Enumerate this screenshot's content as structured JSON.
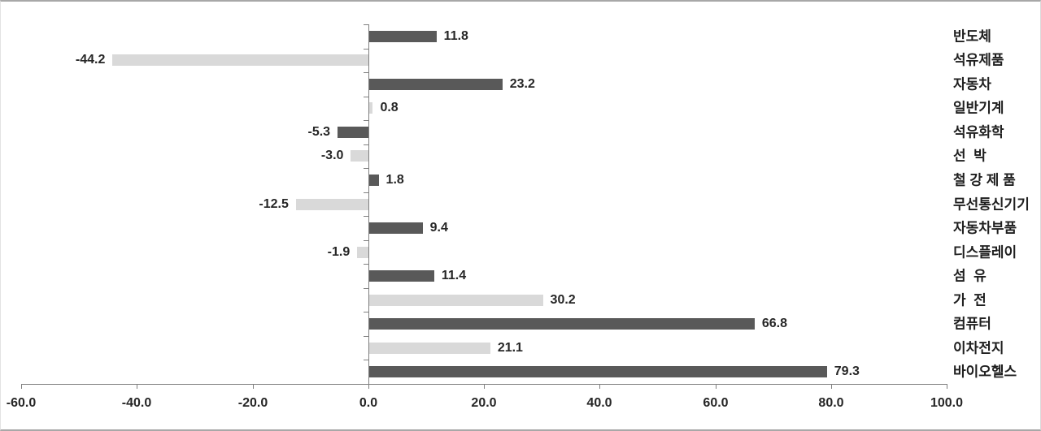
{
  "chart_data": {
    "type": "bar",
    "orientation": "horizontal",
    "title": "",
    "xlabel": "",
    "ylabel": "",
    "xlim": [
      -60.0,
      100.0
    ],
    "grid": false,
    "legend": "none",
    "categories": [
      "반도체",
      "석유제품",
      "자동차",
      "일반기계",
      "석유화학",
      "선  박",
      "철 강 제 품",
      "무선통신기기",
      "자동차부품",
      "디스플레이",
      "섬  유",
      "가  전",
      "컴퓨터",
      "이차전지",
      "바이오헬스"
    ],
    "values": [
      11.8,
      -44.2,
      23.2,
      0.8,
      -5.3,
      -3.0,
      1.8,
      -12.5,
      9.4,
      -1.9,
      11.4,
      30.2,
      66.8,
      21.1,
      79.3
    ],
    "value_labels": [
      "11.8",
      "-44.2",
      "23.2",
      "0.8",
      "-5.3",
      "-3.0",
      "1.8",
      "-12.5",
      "9.4",
      "-1.9",
      "11.4",
      "30.2",
      "66.8",
      "21.1",
      "79.3"
    ],
    "x_ticks": [
      -60,
      -40,
      -20,
      0,
      20,
      40,
      60,
      80,
      100
    ],
    "x_tick_labels": [
      "-60.0",
      "-40.0",
      "-20.0",
      "0.0",
      "20.0",
      "40.0",
      "60.0",
      "80.0",
      "100.0"
    ],
    "colors": {
      "bar_dark": "#595959",
      "bar_light": "#d9d9d9",
      "axis": "#808080",
      "text": "#262626"
    }
  }
}
